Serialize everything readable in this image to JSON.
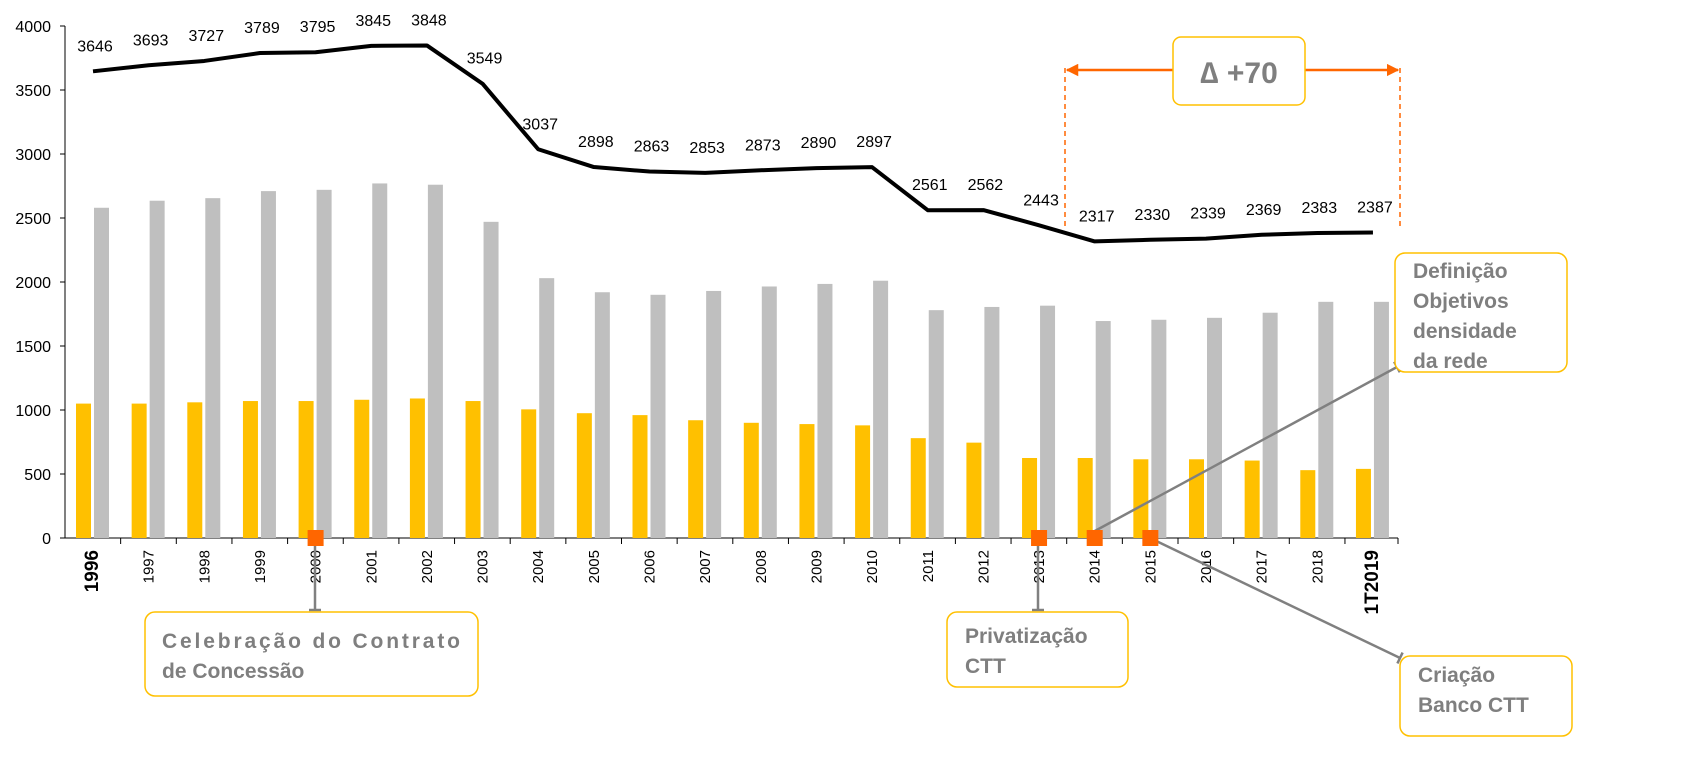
{
  "chart_data": {
    "type": "bar-line",
    "categories": [
      "1996",
      "1997",
      "1998",
      "1999",
      "2000",
      "2001",
      "2002",
      "2003",
      "2004",
      "2005",
      "2006",
      "2007",
      "2008",
      "2009",
      "2010",
      "2011",
      "2012",
      "2013",
      "2014",
      "2015",
      "2016",
      "2017",
      "2018",
      "1T2019"
    ],
    "series": [
      {
        "type": "bar",
        "color": "#ffc000",
        "values": [
          1050,
          1050,
          1060,
          1070,
          1070,
          1080,
          1090,
          1070,
          1005,
          975,
          960,
          920,
          900,
          890,
          880,
          780,
          745,
          625,
          625,
          615,
          615,
          605,
          530,
          540
        ]
      },
      {
        "type": "bar",
        "color": "#bfbfbf",
        "values": [
          2580,
          2635,
          2655,
          2710,
          2720,
          2770,
          2760,
          2470,
          2030,
          1920,
          1900,
          1930,
          1965,
          1985,
          2010,
          1780,
          1805,
          1815,
          1695,
          1705,
          1720,
          1760,
          1845,
          1845
        ]
      },
      {
        "type": "line",
        "color": "#000000",
        "values": [
          3646,
          3693,
          3727,
          3789,
          3795,
          3845,
          3848,
          3549,
          3037,
          2898,
          2863,
          2853,
          2873,
          2890,
          2897,
          2561,
          2562,
          2443,
          2317,
          2330,
          2339,
          2369,
          2383,
          2387
        ]
      }
    ],
    "ylim": [
      0,
      4000
    ],
    "yticks": [
      0,
      500,
      1000,
      1500,
      2000,
      2500,
      3000,
      3500,
      4000
    ],
    "delta_label": "∆ +70",
    "annotations": [
      {
        "lines": [
          "Celebração do Contrato",
          "de Concessão"
        ]
      },
      {
        "lines": [
          "Privatização",
          "CTT"
        ]
      },
      {
        "lines": [
          "Definição",
          "Objetivos",
          "densidade",
          "da rede"
        ]
      },
      {
        "lines": [
          "Criação",
          "Banco CTT"
        ]
      }
    ]
  }
}
